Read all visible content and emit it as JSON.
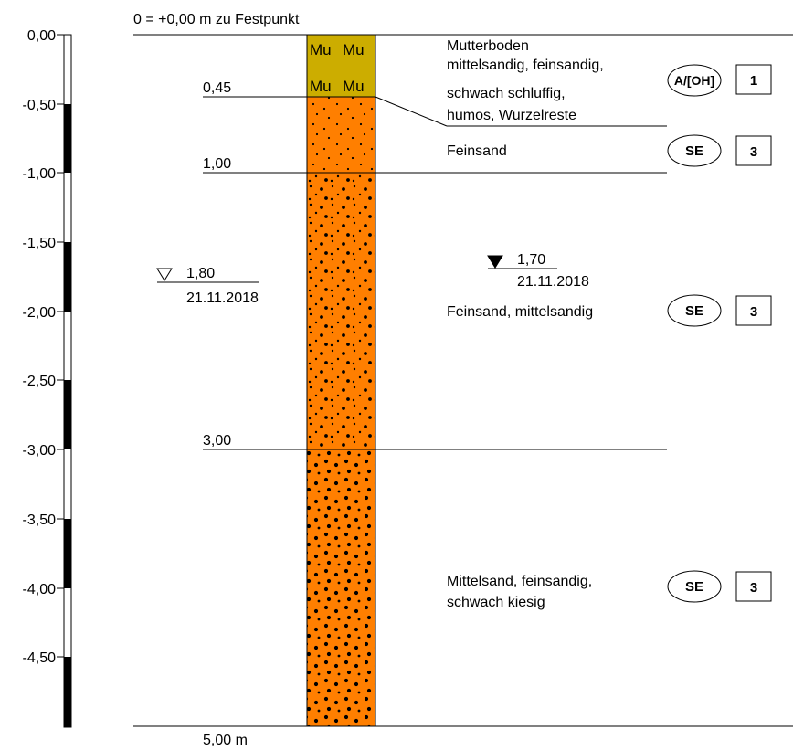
{
  "header": {
    "reference": "0 = +0,00 m zu Festpunkt"
  },
  "scale": {
    "ticks": [
      "0,00",
      "-0,50",
      "-1,00",
      "-1,50",
      "-2,00",
      "-2,50",
      "-3,00",
      "-3,50",
      "-4,00",
      "-4,50"
    ]
  },
  "column": {
    "depth_boundaries": [
      "0,45",
      "1,00",
      "3,00"
    ],
    "bottom_label": "5,00 m",
    "topsoil_symbol": "Mu",
    "colors": {
      "topsoil": "#ccad00",
      "sand": "#ff7f00"
    }
  },
  "groundwater": [
    {
      "depth": "1,80",
      "date": "21.11.2018",
      "symbol": "open-triangle-icon"
    },
    {
      "depth": "1,70",
      "date": "21.11.2018",
      "symbol": "filled-triangle-icon"
    }
  ],
  "layers": [
    {
      "description": [
        "Mutterboden",
        "mittelsandig, feinsandig,",
        "schwach schluffig,",
        "humos, Wurzelreste"
      ],
      "group": "A/[OH]",
      "class": "1"
    },
    {
      "description": [
        "Feinsand"
      ],
      "group": "SE",
      "class": "3"
    },
    {
      "description": [
        "Feinsand, mittelsandig"
      ],
      "group": "SE",
      "class": "3"
    },
    {
      "description": [
        "Mittelsand, feinsandig,",
        "schwach kiesig"
      ],
      "group": "SE",
      "class": "3"
    }
  ]
}
